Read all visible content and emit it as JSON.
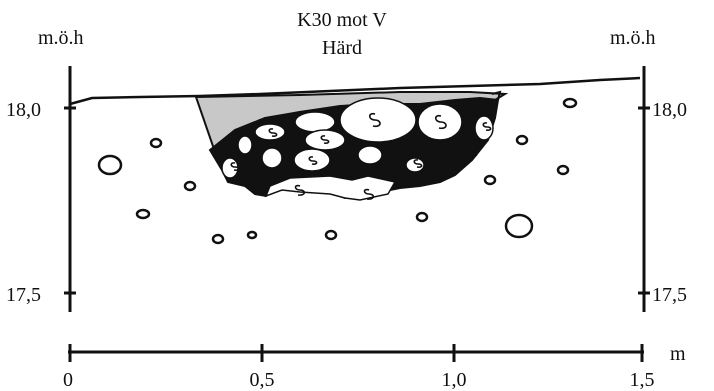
{
  "figure": {
    "title_lines": [
      "K30 mot V",
      "Härd"
    ],
    "left_axis": {
      "unit_label": "m.ö.h",
      "ticks": [
        "18,0",
        "17,5"
      ]
    },
    "right_axis": {
      "unit_label": "m.ö.h",
      "ticks": [
        "18,0",
        "17,5"
      ]
    },
    "bottom_axis": {
      "unit_label": "m",
      "ticks": [
        "0",
        "0,5",
        "1,0",
        "1,5"
      ]
    },
    "stone_mark": "S"
  },
  "colors": {
    "ink": "#111111",
    "fill_grey": "#c8c8c8",
    "background": "#ffffff"
  }
}
